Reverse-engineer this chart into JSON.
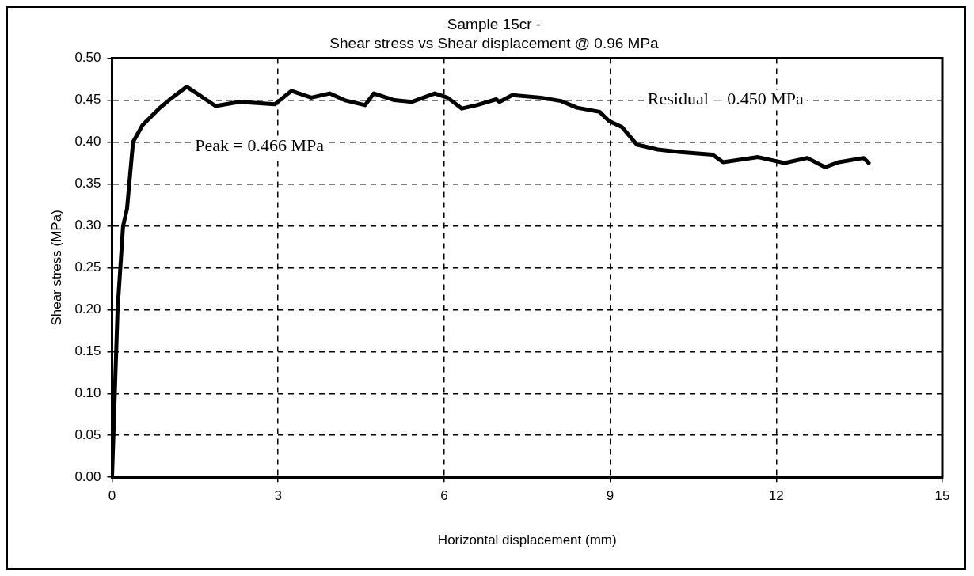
{
  "chart_data": {
    "type": "line",
    "title": "Sample 15cr -",
    "subtitle": "Shear stress vs Shear displacement @ 0.96 MPa",
    "xlabel": "Horizontal displacement (mm)",
    "ylabel": "Shear stress (MPa)",
    "annotations": [
      "Peak = 0.466 MPa",
      "Residual = 0.450 MPa"
    ],
    "series": [
      {
        "color": "#000000",
        "x": [
          0,
          0.05,
          0.1,
          0.2,
          0.27,
          0.38,
          0.55,
          0.85,
          1.03,
          1.35,
          1.87,
          2.3,
          2.94,
          3.24,
          3.6,
          3.93,
          4.2,
          4.57,
          4.73,
          5.1,
          5.42,
          5.83,
          6.06,
          6.32,
          6.59,
          6.94,
          7.0,
          7.23,
          7.75,
          8.11,
          8.4,
          8.81,
          8.98,
          9.21,
          9.48,
          9.86,
          10.27,
          10.85,
          11.04,
          11.67,
          12.15,
          12.56,
          12.88,
          13.13,
          13.58,
          13.67
        ],
        "values": [
          0,
          0.1,
          0.2,
          0.3,
          0.32,
          0.4,
          0.42,
          0.44,
          0.45,
          0.466,
          0.443,
          0.448,
          0.445,
          0.461,
          0.453,
          0.458,
          0.45,
          0.444,
          0.458,
          0.45,
          0.448,
          0.458,
          0.453,
          0.44,
          0.444,
          0.451,
          0.448,
          0.456,
          0.453,
          0.449,
          0.441,
          0.436,
          0.425,
          0.418,
          0.397,
          0.391,
          0.388,
          0.385,
          0.376,
          0.382,
          0.375,
          0.381,
          0.37,
          0.376,
          0.381,
          0.375
        ]
      }
    ],
    "xlim": [
      0,
      15
    ],
    "xticks": [
      0,
      3,
      6,
      9,
      12,
      15
    ],
    "ylim": [
      0,
      0.5
    ],
    "yticks": [
      {
        "value": 0,
        "label": "0.00"
      },
      {
        "value": 0.05,
        "label": "0.05"
      },
      {
        "value": 0.1,
        "label": "0.10"
      },
      {
        "value": 0.15,
        "label": "0.15"
      },
      {
        "value": 0.2,
        "label": "0.20"
      },
      {
        "value": 0.25,
        "label": "0.25"
      },
      {
        "value": 0.3,
        "label": "0.30"
      },
      {
        "value": 0.35,
        "label": "0.35"
      },
      {
        "value": 0.4,
        "label": "0.40"
      },
      {
        "value": 0.45,
        "label": "0.45"
      },
      {
        "value": 0.5,
        "label": "0.50"
      }
    ],
    "grid": true,
    "legend": false,
    "marker": "none",
    "line_style": "solid"
  }
}
